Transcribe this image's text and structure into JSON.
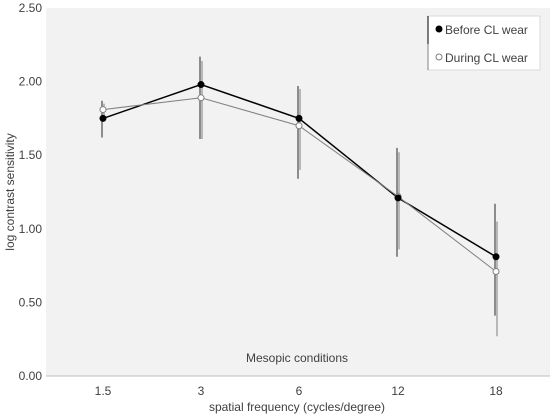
{
  "chart_data": {
    "type": "line",
    "title": "",
    "xlabel": "spatial frequency (cycles/degree)",
    "ylabel": "log contrast sensitivity",
    "categories": [
      "1.5",
      "3",
      "6",
      "12",
      "18"
    ],
    "ylim": [
      0,
      2.5
    ],
    "yticks": [
      "0.00",
      "0.50",
      "1.00",
      "1.50",
      "2.00",
      "2.50"
    ],
    "y_tick_values": [
      0,
      0.5,
      1.0,
      1.5,
      2.0,
      2.5
    ],
    "grid": false,
    "plot_background": "#f2f2f2",
    "legend_position": "top-right",
    "annotation": "Mesopic conditions",
    "series": [
      {
        "name": "Before CL wear",
        "marker": "filled-circle",
        "color": "#000000",
        "values": [
          1.75,
          1.98,
          1.75,
          1.21,
          0.81
        ],
        "error_low": [
          1.62,
          1.61,
          1.34,
          0.81,
          0.41
        ],
        "error_high": [
          1.87,
          2.17,
          1.97,
          1.55,
          1.17
        ]
      },
      {
        "name": "During CL wear",
        "marker": "open-circle",
        "color": "#808080",
        "values": [
          1.81,
          1.89,
          1.7,
          1.22,
          0.71
        ],
        "error_low": [
          1.76,
          1.61,
          1.4,
          0.86,
          0.27
        ],
        "error_high": [
          1.85,
          2.14,
          1.95,
          1.52,
          1.05
        ]
      }
    ]
  }
}
